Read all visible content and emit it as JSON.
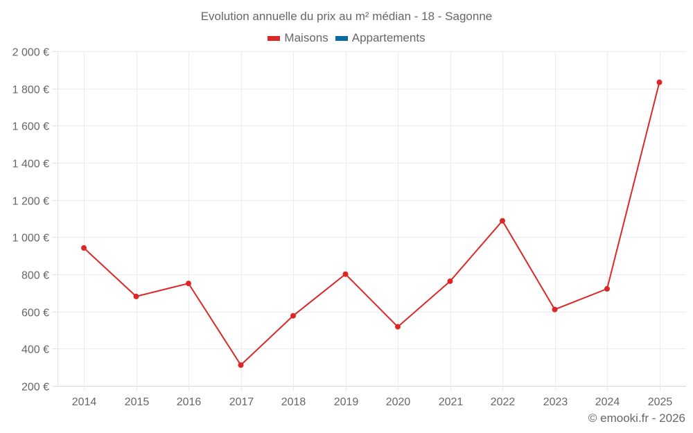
{
  "title": "Evolution annuelle du prix au m² médian - 18 - Sagonne",
  "legend": [
    {
      "label": "Maisons",
      "color": "#dd2626"
    },
    {
      "label": "Appartements",
      "color": "#0b6aa2"
    }
  ],
  "footer": "© emooki.fr - 2026",
  "chart_data": {
    "type": "line",
    "title": "Evolution annuelle du prix au m² médian - 18 - Sagonne",
    "xlabel": "",
    "ylabel": "",
    "categories": [
      "2014",
      "2015",
      "2016",
      "2017",
      "2018",
      "2019",
      "2020",
      "2021",
      "2022",
      "2023",
      "2024",
      "2025"
    ],
    "series": [
      {
        "name": "Maisons",
        "color": "#dd2626",
        "values": [
          942,
          681,
          751,
          312,
          577,
          801,
          518,
          763,
          1088,
          611,
          722,
          1833
        ]
      },
      {
        "name": "Appartements",
        "color": "#0b6aa2",
        "values": []
      }
    ],
    "ylim": [
      200,
      2000
    ],
    "yticks": [
      200,
      400,
      600,
      800,
      1000,
      1200,
      1400,
      1600,
      1800,
      2000
    ],
    "ytick_labels": [
      "200 €",
      "400 €",
      "600 €",
      "800 €",
      "1 000 €",
      "1 200 €",
      "1 400 €",
      "1 600 €",
      "1 800 €",
      "2 000 €"
    ],
    "grid": true,
    "legend_position": "top"
  }
}
